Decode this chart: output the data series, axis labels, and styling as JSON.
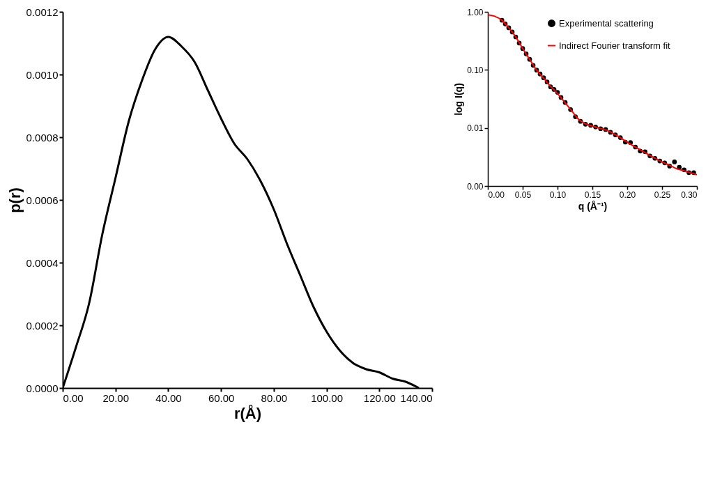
{
  "chart_data": [
    {
      "type": "line",
      "xlabel": "r(Å)",
      "ylabel": "p(r)",
      "x": [
        0,
        5,
        10,
        15,
        20,
        25,
        30,
        35,
        40,
        45,
        50,
        55,
        60,
        65,
        70,
        75,
        80,
        85,
        90,
        95,
        100,
        105,
        110,
        115,
        120,
        125,
        130,
        135
      ],
      "series": [
        {
          "color": "#000000",
          "values": [
            0,
            0.00013,
            0.00027,
            0.00049,
            0.00067,
            0.00085,
            0.00098,
            0.00108,
            0.00112,
            0.00109,
            0.00104,
            0.00095,
            0.00086,
            0.00078,
            0.00073,
            0.00066,
            0.00057,
            0.00046,
            0.00036,
            0.00026,
            0.00018,
            0.00012,
            8e-05,
            6e-05,
            5e-05,
            3e-05,
            2e-05,
            0
          ]
        }
      ],
      "xlim": [
        0,
        140
      ],
      "xticks": [
        {
          "value": 0,
          "label": "0.00"
        },
        {
          "value": 20,
          "label": "20.00"
        },
        {
          "value": 40,
          "label": "40.00"
        },
        {
          "value": 60,
          "label": "60.00"
        },
        {
          "value": 80,
          "label": "80.00"
        },
        {
          "value": 100,
          "label": "100.00"
        },
        {
          "value": 120,
          "label": "120.00"
        },
        {
          "value": 140,
          "label": "140.00"
        }
      ],
      "ylim": [
        0,
        0.0012
      ],
      "yticks": [
        {
          "value": 0,
          "label": "0.0000"
        },
        0.0002,
        0.0004,
        0.0006,
        0.0008,
        {
          "value": 0.001,
          "label": "0.0010"
        },
        0.0012
      ]
    },
    {
      "type": "scatter",
      "xlabel": "q (Å⁻¹)",
      "ylabel": "log I(q)",
      "log": "y",
      "legend": "top right",
      "series": [
        {
          "name": "Experimental scattering",
          "type": "scatter",
          "color": "#000000",
          "marker": "circle",
          "x": [
            0.0202,
            0.025,
            0.03,
            0.035,
            0.04,
            0.045,
            0.05,
            0.055,
            0.06,
            0.065,
            0.07,
            0.075,
            0.08,
            0.085,
            0.09,
            0.095,
            0.1,
            0.105,
            0.111,
            0.1187,
            0.1257,
            0.1329,
            0.1401,
            0.1476,
            0.1546,
            0.1618,
            0.169,
            0.176,
            0.183,
            0.1902,
            0.1973,
            0.2047,
            0.2117,
            0.2186,
            0.2256,
            0.2326,
            0.2398,
            0.2468,
            0.2538,
            0.2608,
            0.2678,
            0.2747,
            0.2817,
            0.2885,
            0.2954
          ],
          "values": [
            0.716,
            0.62,
            0.53,
            0.45,
            0.37,
            0.29,
            0.233,
            0.189,
            0.152,
            0.12,
            0.099,
            0.085,
            0.073,
            0.062,
            0.051,
            0.046,
            0.041,
            0.0335,
            0.0274,
            0.0207,
            0.0156,
            0.013,
            0.0116,
            0.0111,
            0.0104,
            0.0097,
            0.0094,
            0.0084,
            0.0076,
            0.0068,
            0.0057,
            0.0056,
            0.0047,
            0.004,
            0.0039,
            0.0033,
            0.003,
            0.0027,
            0.0025,
            0.0022,
            0.0026,
            0.0021,
            0.0019,
            0.0017,
            0.0017
          ]
        },
        {
          "name": "Indirect Fourier transform fit",
          "type": "line",
          "color": "#ff0000",
          "x": [
            0,
            0.01,
            0.02,
            0.03,
            0.04,
            0.05,
            0.06,
            0.07,
            0.08,
            0.09,
            0.1,
            0.11,
            0.12,
            0.13,
            0.14,
            0.15,
            0.16,
            0.17,
            0.18,
            0.19,
            0.2,
            0.21,
            0.22,
            0.23,
            0.24,
            0.25,
            0.26,
            0.27,
            0.28,
            0.29,
            0.3
          ],
          "values": [
            0.89,
            0.84,
            0.72,
            0.53,
            0.37,
            0.233,
            0.152,
            0.099,
            0.072,
            0.052,
            0.039,
            0.028,
            0.02,
            0.0142,
            0.0118,
            0.0108,
            0.0099,
            0.0092,
            0.008,
            0.0068,
            0.0057,
            0.0048,
            0.0041,
            0.0035,
            0.003,
            0.0026,
            0.0023,
            0.002,
            0.00185,
            0.0017,
            0.00157
          ]
        }
      ],
      "xlim": [
        0,
        0.3
      ],
      "xticks": [
        {
          "value": 0,
          "label": "0.00"
        },
        0.05,
        {
          "value": 0.1,
          "label": "0.10"
        },
        0.15,
        {
          "value": 0.2,
          "label": "0.20"
        },
        0.25,
        {
          "value": 0.3,
          "label": "0.30"
        }
      ],
      "ylim": [
        0.001,
        1
      ],
      "yticks": [
        {
          "value": 0.001,
          "label": "0.00"
        },
        0.01,
        {
          "value": 0.1,
          "label": "0.10"
        },
        {
          "value": 1,
          "label": "1.00"
        }
      ]
    }
  ]
}
